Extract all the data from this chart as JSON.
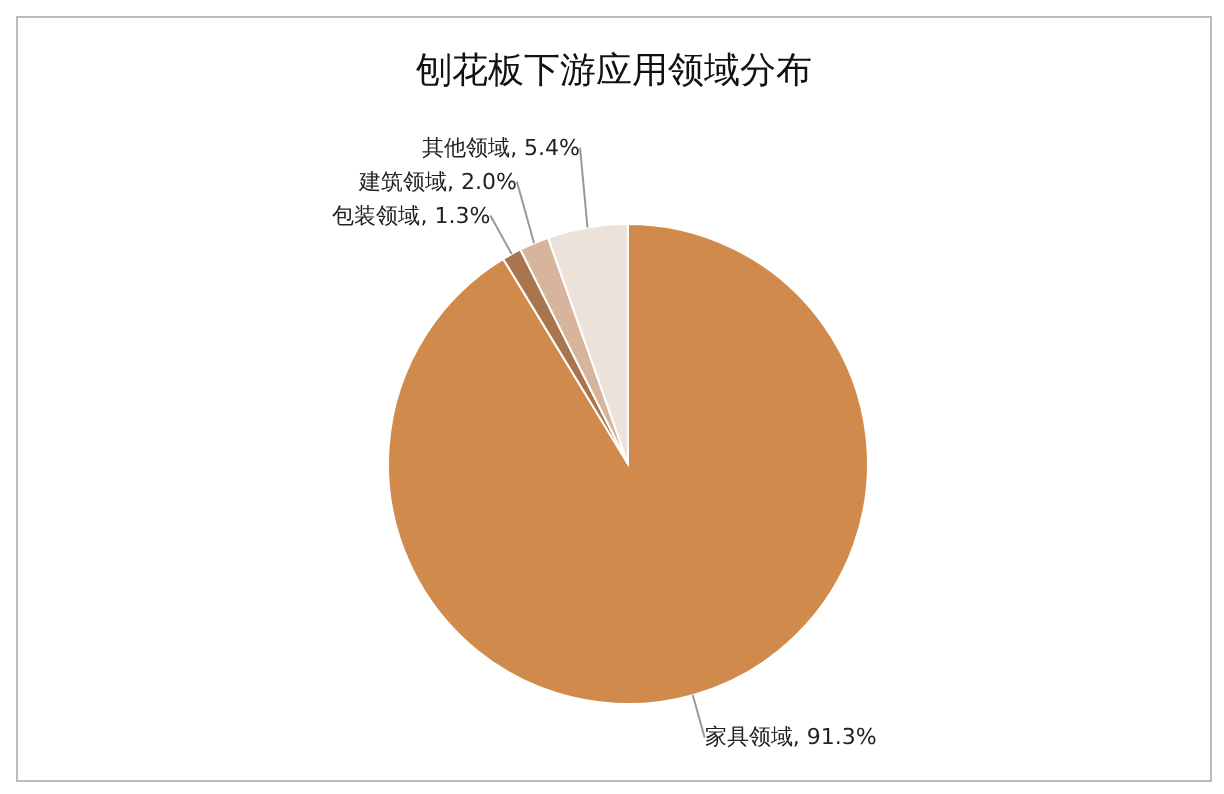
{
  "chart_data": {
    "type": "pie",
    "title": "刨花板下游应用领域分布",
    "categories": [
      "家具领域",
      "包装领域",
      "建筑领域",
      "其他领域"
    ],
    "values": [
      91.3,
      1.3,
      2.0,
      5.4
    ],
    "colors": [
      "#d08a4c",
      "#a8754e",
      "#d6b59c",
      "#ece2da"
    ],
    "value_labels": [
      "91.3%",
      "1.3%",
      "2.0%",
      "5.4%"
    ],
    "legend": false
  }
}
